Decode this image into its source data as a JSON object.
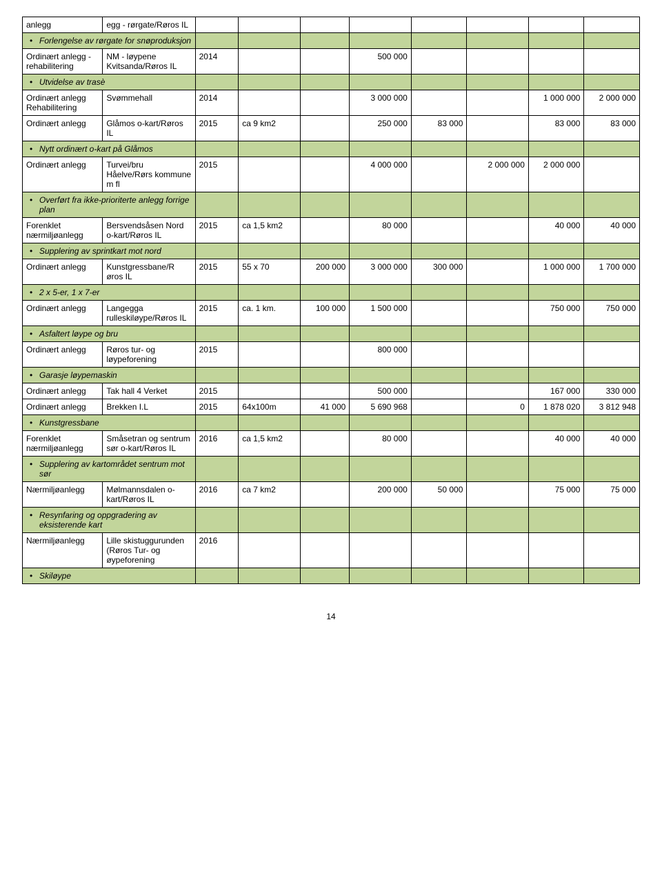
{
  "colors": {
    "highlight": "#c2d59b",
    "border": "#000000",
    "background": "#ffffff"
  },
  "rows": [
    {
      "type": "data",
      "cells": [
        "anlegg",
        "egg - rørgate/Røros IL",
        "",
        "",
        "",
        "",
        "",
        "",
        "",
        ""
      ]
    },
    {
      "type": "bullet",
      "label": "Forlengelse av rørgate for snøproduksjon"
    },
    {
      "type": "data",
      "cells": [
        "Ordinært anlegg - rehabilitering",
        "NM - løypene Kvitsanda/Røros IL",
        "2014",
        "",
        "",
        "500 000",
        "",
        "",
        "",
        ""
      ]
    },
    {
      "type": "bullet",
      "label": "Utvidelse av trasè"
    },
    {
      "type": "data",
      "cells": [
        "Ordinært anlegg Rehabilitering",
        "Svømmehall",
        "2014",
        "",
        "",
        "3 000 000",
        "",
        "",
        "1 000 000",
        "2 000 000"
      ]
    },
    {
      "type": "data",
      "cells": [
        "Ordinært anlegg",
        "Glåmos o-kart/Røros IL",
        "2015",
        "ca 9 km2",
        "",
        "250 000",
        "83 000",
        "",
        "83 000",
        "83 000"
      ]
    },
    {
      "type": "bullet",
      "label": "Nytt ordinært o-kart på Glåmos"
    },
    {
      "type": "data",
      "cells": [
        "Ordinært anlegg",
        "Turvei/bru Håelve/Rørs kommune m fl",
        "2015",
        "",
        "",
        "4 000 000",
        "",
        "2 000 000",
        "2 000 000",
        ""
      ]
    },
    {
      "type": "bullet",
      "label": "Overført fra ikke-prioriterte anlegg forrige plan"
    },
    {
      "type": "data",
      "cells": [
        "Forenklet nærmiljøanlegg",
        "Bersvendsåsen Nord o-kart/Røros IL",
        "2015",
        "ca 1,5 km2",
        "",
        "80 000",
        "",
        "",
        "40 000",
        "40 000"
      ]
    },
    {
      "type": "bullet",
      "label": "Supplering av sprintkart mot nord"
    },
    {
      "type": "data",
      "cells": [
        "Ordinært anlegg",
        "Kunstgressbane/R øros IL",
        "2015",
        "55 x 70",
        "200 000",
        "3 000 000",
        "300 000",
        "",
        "1 000 000",
        "1 700 000"
      ]
    },
    {
      "type": "bullet",
      "label": "2 x 5-er, 1 x 7-er"
    },
    {
      "type": "data",
      "cells": [
        "Ordinært anlegg",
        "Langegga rulleskiløype/Røros IL",
        "2015",
        "ca. 1 km.",
        "100 000",
        "1 500 000",
        "",
        "",
        "750 000",
        "750 000"
      ]
    },
    {
      "type": "bullet",
      "label": "Asfaltert løype og bru"
    },
    {
      "type": "data",
      "cells": [
        "Ordinært anlegg",
        "Røros tur- og løypeforening",
        "2015",
        "",
        "",
        "800 000",
        "",
        "",
        "",
        ""
      ]
    },
    {
      "type": "bullet",
      "label": "Garasje løypemaskin"
    },
    {
      "type": "data",
      "cells": [
        "Ordinært anlegg",
        "Tak hall 4 Verket",
        "2015",
        "",
        "",
        "500 000",
        "",
        "",
        "167 000",
        "330 000"
      ]
    },
    {
      "type": "data",
      "cells": [
        "Ordinært anlegg",
        "Brekken I.L",
        "2015",
        "64x100m",
        "41 000",
        "5 690 968",
        "",
        "0",
        "1 878 020",
        "3 812 948"
      ]
    },
    {
      "type": "bullet",
      "label": "Kunstgressbane"
    },
    {
      "type": "data",
      "cells": [
        "Forenklet nærmiljøanlegg",
        "Småsetran og sentrum sør o-kart/Røros IL",
        "2016",
        "ca 1,5 km2",
        "",
        "80 000",
        "",
        "",
        "40 000",
        "40 000"
      ]
    },
    {
      "type": "bullet",
      "label": "Supplering av kartområdet sentrum mot sør"
    },
    {
      "type": "data",
      "cells": [
        "Nærmiljøanlegg",
        "Mølmannsdalen o-kart/Røros IL",
        "2016",
        "ca 7 km2",
        "",
        "200 000",
        "50 000",
        "",
        "75 000",
        "75 000"
      ]
    },
    {
      "type": "bullet",
      "label": "Resynfaring og oppgradering av eksisterende kart"
    },
    {
      "type": "data",
      "cells": [
        "Nærmiljøanlegg",
        "Lille skistuggurunden (Røros Tur- og øypeforening",
        "2016",
        "",
        "",
        "",
        "",
        "",
        "",
        ""
      ]
    },
    {
      "type": "bullet",
      "label": "Skiløype"
    }
  ],
  "page_number": "14"
}
